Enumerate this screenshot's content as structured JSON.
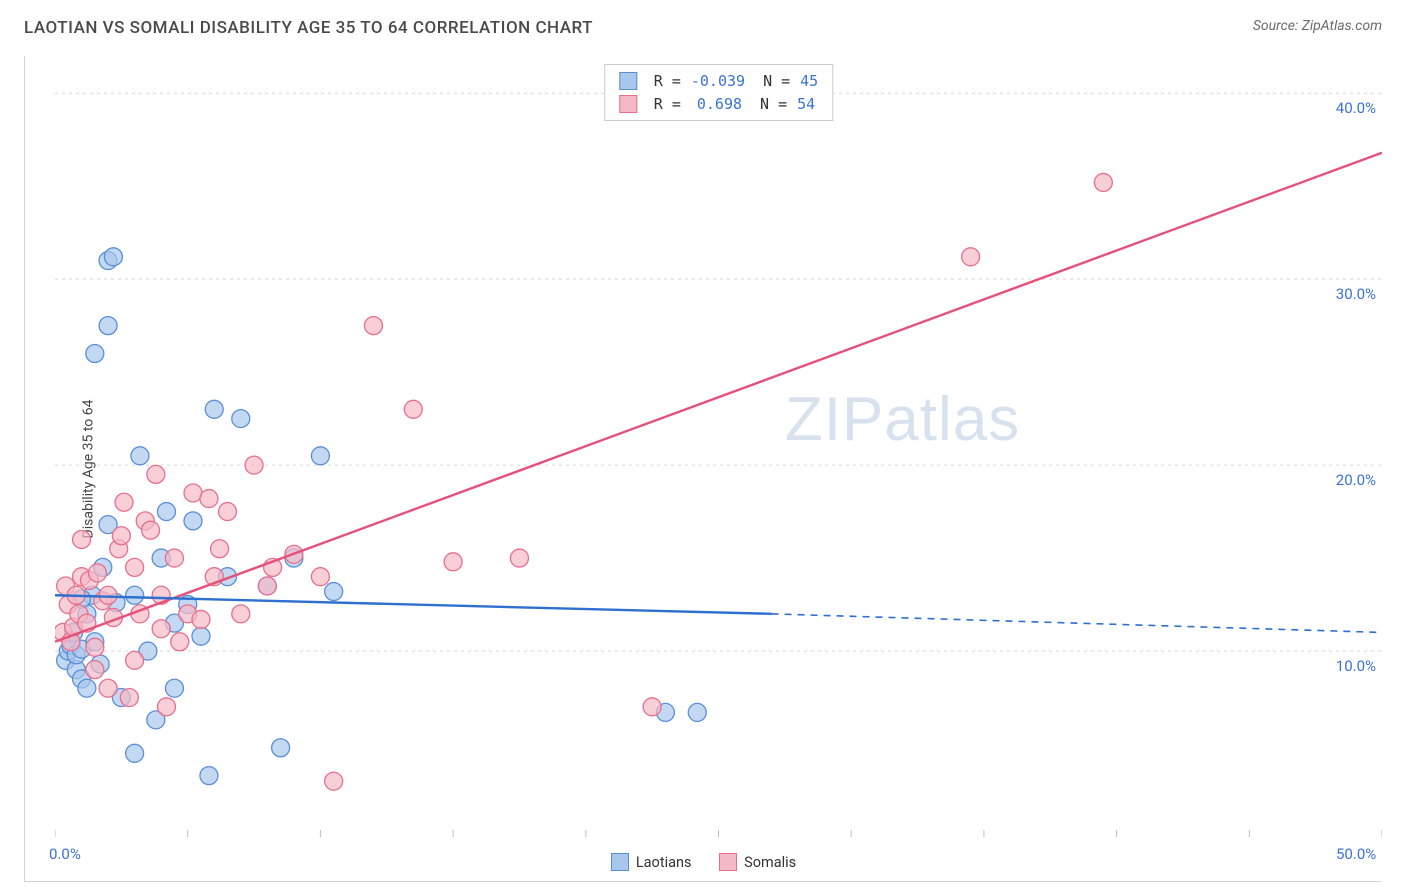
{
  "header": {
    "title": "LAOTIAN VS SOMALI DISABILITY AGE 35 TO 64 CORRELATION CHART",
    "source": "Source: ZipAtlas.com"
  },
  "axes": {
    "y_label": "Disability Age 35 to 64",
    "x_min": 0.0,
    "x_max": 50.0,
    "y_min": 0.0,
    "y_max": 42.0,
    "y_ticks": [
      {
        "v": 10.0,
        "label": "10.0%"
      },
      {
        "v": 20.0,
        "label": "20.0%"
      },
      {
        "v": 30.0,
        "label": "30.0%"
      },
      {
        "v": 40.0,
        "label": "40.0%"
      }
    ],
    "x_ticks": [
      {
        "v": 0.0,
        "label": "0.0%"
      },
      {
        "v": 5.0,
        "label": ""
      },
      {
        "v": 10.0,
        "label": ""
      },
      {
        "v": 15.0,
        "label": ""
      },
      {
        "v": 20.0,
        "label": ""
      },
      {
        "v": 25.0,
        "label": ""
      },
      {
        "v": 30.0,
        "label": ""
      },
      {
        "v": 35.0,
        "label": ""
      },
      {
        "v": 40.0,
        "label": ""
      },
      {
        "v": 45.0,
        "label": ""
      },
      {
        "v": 50.0,
        "label": "50.0%"
      }
    ],
    "grid_color": "#d7d7d7",
    "grid_dash": "3,4"
  },
  "series": {
    "laotians": {
      "label": "Laotians",
      "color_fill": "#a9c7ec",
      "color_stroke": "#5a8fd6",
      "line_color": "#2f6fd0",
      "r_label": "R =",
      "r_value": "-0.039",
      "n_label": "N =",
      "n_value": "45",
      "points": [
        [
          0.4,
          9.5
        ],
        [
          0.5,
          10.0
        ],
        [
          0.6,
          10.3
        ],
        [
          0.7,
          11.0
        ],
        [
          0.8,
          9.0
        ],
        [
          0.8,
          9.8
        ],
        [
          1.0,
          10.1
        ],
        [
          1.0,
          8.5
        ],
        [
          1.2,
          12.0
        ],
        [
          1.2,
          8.0
        ],
        [
          1.4,
          13.0
        ],
        [
          1.5,
          26.0
        ],
        [
          1.5,
          10.5
        ],
        [
          1.7,
          9.3
        ],
        [
          1.8,
          14.5
        ],
        [
          2.0,
          27.5
        ],
        [
          2.0,
          31.0
        ],
        [
          2.2,
          31.2
        ],
        [
          2.3,
          12.6
        ],
        [
          2.5,
          7.5
        ],
        [
          3.0,
          13.0
        ],
        [
          3.0,
          4.5
        ],
        [
          3.2,
          20.5
        ],
        [
          3.5,
          10.0
        ],
        [
          3.8,
          6.3
        ],
        [
          4.0,
          15.0
        ],
        [
          4.2,
          17.5
        ],
        [
          4.5,
          8.0
        ],
        [
          4.5,
          11.5
        ],
        [
          5.0,
          12.5
        ],
        [
          5.2,
          17.0
        ],
        [
          5.5,
          10.8
        ],
        [
          5.8,
          3.3
        ],
        [
          6.0,
          23.0
        ],
        [
          6.5,
          14.0
        ],
        [
          7.0,
          22.5
        ],
        [
          8.0,
          13.5
        ],
        [
          8.5,
          4.8
        ],
        [
          9.0,
          15.0
        ],
        [
          10.0,
          20.5
        ],
        [
          10.5,
          13.2
        ],
        [
          23.0,
          6.7
        ],
        [
          24.2,
          6.7
        ],
        [
          1.0,
          12.8
        ],
        [
          2.0,
          16.8
        ]
      ],
      "trend": {
        "x1": 0,
        "y1": 13.0,
        "x2_solid": 27,
        "y2_solid": 12.0,
        "x2": 50,
        "y2": 11.0
      }
    },
    "somalis": {
      "label": "Somalis",
      "color_fill": "#f5b9c6",
      "color_stroke": "#e76f8e",
      "line_color": "#e5517a",
      "r_label": "R =",
      "r_value": "0.698",
      "n_label": "N =",
      "n_value": "54",
      "points": [
        [
          0.3,
          11.0
        ],
        [
          0.4,
          13.5
        ],
        [
          0.5,
          12.5
        ],
        [
          0.6,
          10.5
        ],
        [
          0.7,
          11.3
        ],
        [
          0.8,
          13.0
        ],
        [
          0.9,
          12.0
        ],
        [
          1.0,
          14.0
        ],
        [
          1.0,
          16.0
        ],
        [
          1.2,
          11.5
        ],
        [
          1.3,
          13.8
        ],
        [
          1.5,
          10.2
        ],
        [
          1.6,
          14.2
        ],
        [
          1.8,
          12.7
        ],
        [
          2.0,
          8.0
        ],
        [
          2.0,
          13.0
        ],
        [
          2.2,
          11.8
        ],
        [
          2.4,
          15.5
        ],
        [
          2.6,
          18.0
        ],
        [
          2.8,
          7.5
        ],
        [
          3.0,
          14.5
        ],
        [
          3.2,
          12.0
        ],
        [
          3.4,
          17.0
        ],
        [
          3.6,
          16.5
        ],
        [
          3.8,
          19.5
        ],
        [
          4.0,
          13.0
        ],
        [
          4.2,
          7.0
        ],
        [
          4.5,
          15.0
        ],
        [
          4.7,
          10.5
        ],
        [
          5.0,
          12.0
        ],
        [
          5.2,
          18.5
        ],
        [
          5.5,
          11.7
        ],
        [
          6.0,
          14.0
        ],
        [
          6.2,
          15.5
        ],
        [
          6.5,
          17.5
        ],
        [
          7.0,
          12.0
        ],
        [
          7.5,
          20.0
        ],
        [
          8.0,
          13.5
        ],
        [
          8.2,
          14.5
        ],
        [
          9.0,
          15.2
        ],
        [
          10.0,
          14.0
        ],
        [
          10.5,
          3.0
        ],
        [
          12.0,
          27.5
        ],
        [
          13.5,
          23.0
        ],
        [
          15.0,
          14.8
        ],
        [
          17.5,
          15.0
        ],
        [
          22.5,
          7.0
        ],
        [
          34.5,
          31.2
        ],
        [
          39.5,
          35.2
        ],
        [
          1.5,
          9.0
        ],
        [
          3.0,
          9.5
        ],
        [
          4.0,
          11.2
        ],
        [
          5.8,
          18.2
        ],
        [
          2.5,
          16.2
        ]
      ],
      "trend": {
        "x1": 0,
        "y1": 10.5,
        "x2": 50,
        "y2": 36.8
      }
    }
  },
  "marker": {
    "radius": 9,
    "opacity": 0.7,
    "stroke_width": 1.3
  },
  "watermark": "ZIPatlas"
}
